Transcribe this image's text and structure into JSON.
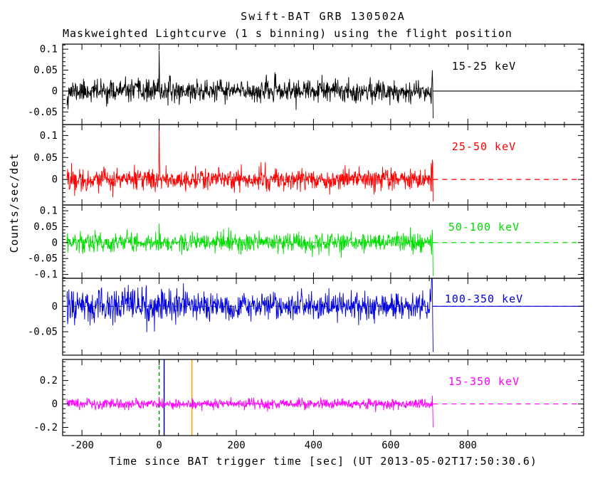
{
  "chart_data": {
    "type": "line",
    "title": "Swift-BAT GRB 130502A",
    "subtitle": "Maskweighted Lightcurve (1 s binning) using the flight position",
    "xlabel": "Time since BAT trigger time [sec] (UT 2013-05-02T17:50:30.6)",
    "ylabel": "Counts/sec/det",
    "xlim": [
      -250,
      1100
    ],
    "xticks": [
      -200,
      0,
      200,
      400,
      600,
      800
    ],
    "x_minor_step": 50,
    "bin_seconds": 1,
    "data_start_sec": -239,
    "data_end_sec": 710,
    "grid": false,
    "background": "#ffffff",
    "frame_color": "#000000",
    "panels": [
      {
        "label": "15-25 keV",
        "color": "#000000",
        "ylim": [
          -0.08,
          0.112
        ],
        "yticks": [
          -0.05,
          0,
          0.05,
          0.1
        ],
        "noise_sigma": 0.013,
        "trigger_spike": {
          "t": 0,
          "amplitude": 0.097
        },
        "end_excursion": {
          "up": 0.05,
          "down": -0.065
        },
        "zero_line_after_data": "solid",
        "seed": 11
      },
      {
        "label": "25-50 keV",
        "color": "#ff0000",
        "ylim": [
          -0.058,
          0.125
        ],
        "yticks": [
          0,
          0.05,
          0.1
        ],
        "noise_sigma": 0.012,
        "trigger_spike": {
          "t": 0,
          "amplitude": 0.135
        },
        "end_excursion": {
          "up": 0.045,
          "down": -0.05
        },
        "zero_line_after_data": "dashed",
        "seed": 22
      },
      {
        "label": "50-100 keV",
        "color": "#00dd00",
        "ylim": [
          -0.112,
          0.118
        ],
        "yticks": [
          -0.1,
          -0.05,
          0,
          0.05,
          0.1
        ],
        "noise_sigma": 0.015,
        "trigger_spike": {
          "t": 0,
          "amplitude": 0.06
        },
        "end_excursion": {
          "up": 0.04,
          "down": -0.105
        },
        "zero_line_after_data": "dashed",
        "seed": 33
      },
      {
        "label": "100-350 keV",
        "color": "#0000dd",
        "ylim": [
          -0.096,
          0.055
        ],
        "yticks": [
          -0.05,
          0
        ],
        "noise_sigma": 0.013,
        "start_noise_factor": 1.6,
        "end_excursion": {
          "up": 0.04,
          "down": -0.09
        },
        "zero_line_after_data": "solid",
        "seed": 44
      },
      {
        "label": "15-350 keV",
        "color": "#ff00ff",
        "ylim": [
          -0.27,
          0.38
        ],
        "yticks": [
          -0.2,
          0,
          0.2
        ],
        "noise_sigma": 0.022,
        "trigger_spike": {
          "t": 0,
          "amplitude": 0.06
        },
        "end_excursion": {
          "up": 0.07,
          "down": -0.2
        },
        "zero_line_after_data": "dashed",
        "seed": 55
      }
    ],
    "vlines_bottom_panel": [
      {
        "t": 0,
        "color": "#009900",
        "style": "dashed"
      },
      {
        "t": 13,
        "color": "#000099",
        "style": "solid"
      },
      {
        "t": 85,
        "color": "#ff9900",
        "style": "solid"
      }
    ]
  }
}
